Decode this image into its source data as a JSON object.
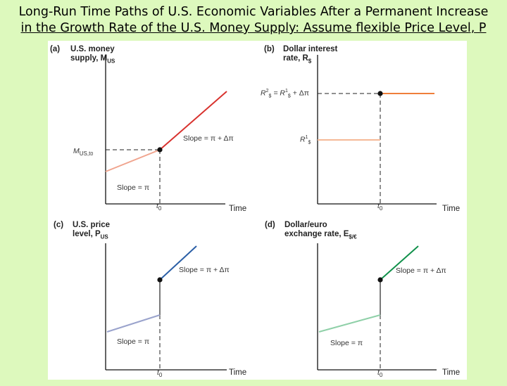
{
  "slide": {
    "title_line1": "Long-Run Time Paths of U.S. Economic Variables After a Permanent Increase",
    "title_line2": "in the Growth Rate of the U.S. Money Supply: Assume flexible Price Level, P"
  },
  "colors": {
    "background": "#ddf9bd",
    "panel_a_before": "#f0a48e",
    "panel_a_after": "#d8322e",
    "panel_b_before": "#f5b896",
    "panel_b_after": "#ef7e3b",
    "panel_c_before": "#9aa3cc",
    "panel_c_after": "#2b5fa6",
    "panel_d_before": "#8fd0a8",
    "panel_d_after": "#10904a"
  },
  "panels": {
    "a": {
      "tag": "(a)",
      "title_line1": "U.S. money",
      "title_line2": "supply, M",
      "title_sub": "US",
      "y_marker": "M",
      "y_marker_sub": "US,t",
      "y_marker_sub2": "0",
      "slope_before": "Slope = π",
      "slope_after": "Slope = π + Δπ",
      "t0": "t",
      "t0_sub": "0",
      "time": "Time"
    },
    "b": {
      "tag": "(b)",
      "title_line1": "Dollar interest",
      "title_line2": "rate, R",
      "title_sub": "$",
      "r2_label": "R",
      "r2_sup": "2",
      "r2_sub": "$",
      "r2_eq": " = R",
      "r2_eq_sup": "1",
      "r2_eq_sub": "$",
      "r2_plus": " + Δπ",
      "r1_label": "R",
      "r1_sup": "1",
      "r1_sub": "$",
      "t0": "t",
      "t0_sub": "0",
      "time": "Time"
    },
    "c": {
      "tag": "(c)",
      "title_line1": "U.S. price",
      "title_line2": "level, P",
      "title_sub": "US",
      "slope_before": "Slope = π",
      "slope_after": "Slope = π + Δπ",
      "t0": "t",
      "t0_sub": "0",
      "time": "Time"
    },
    "d": {
      "tag": "(d)",
      "title_line1": "Dollar/euro",
      "title_line2": "exchange rate, E",
      "title_sub": "$/€",
      "slope_before": "Slope = π",
      "slope_after": "Slope = π + Δπ",
      "t0": "t",
      "t0_sub": "0",
      "time": "Time"
    }
  }
}
